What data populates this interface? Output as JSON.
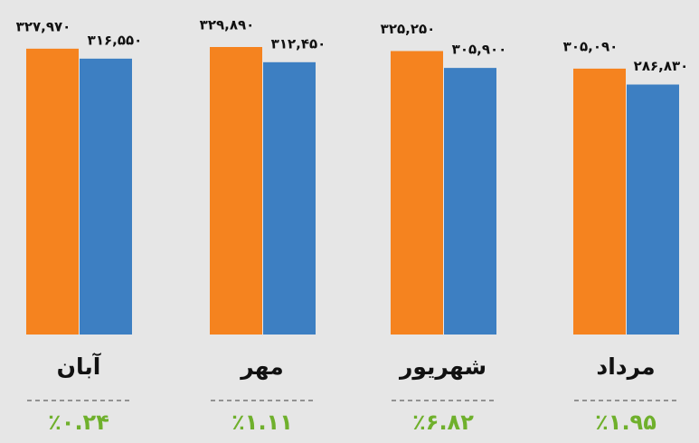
{
  "chart_data": {
    "type": "bar",
    "categories": [
      "آبان",
      "مهر",
      "شهریور",
      "مرداد"
    ],
    "series": [
      {
        "color": "#f5831f",
        "values": [
          327970,
          329890,
          325250,
          305090
        ],
        "value_labels": [
          "۳۲۷,۹۷۰",
          "۳۲۹,۸۹۰",
          "۳۲۵,۲۵۰",
          "۳۰۵,۰۹۰"
        ]
      },
      {
        "color": "#3d7fc2",
        "values": [
          316550,
          312450,
          305900,
          286830
        ],
        "value_labels": [
          "۳۱۶,۵۵۰",
          "۳۱۲,۴۵۰",
          "۳۰۵,۹۰۰",
          "۲۸۶,۸۳۰"
        ]
      }
    ],
    "annotations": [
      "٪۰.۲۴",
      "٪۱.۱۱",
      "٪۶.۸۲",
      "٪۱.۹۵"
    ]
  }
}
